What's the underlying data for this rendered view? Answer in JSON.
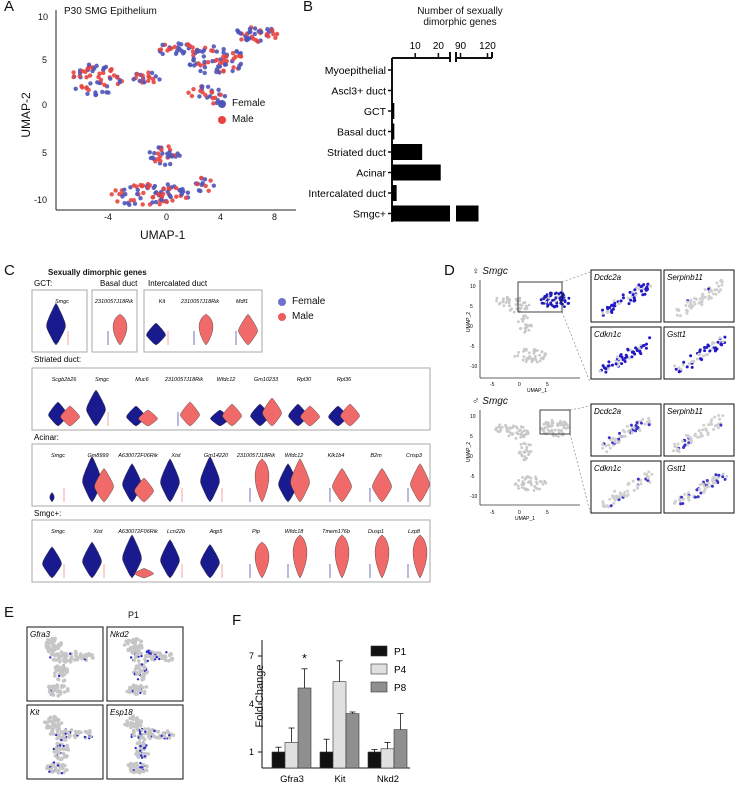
{
  "panels": {
    "A": "A",
    "B": "B",
    "C": "C",
    "D": "D",
    "E": "E",
    "F": "F"
  },
  "panelA": {
    "title": "P30 SMG Epithelium",
    "xlabel": "UMAP-1",
    "ylabel": "UMAP-2",
    "xticks": [
      "-4",
      "0",
      "4",
      "8"
    ],
    "yticks": [
      "10",
      "5",
      "0",
      "5",
      "-10"
    ],
    "legend": [
      {
        "label": "Female",
        "color": "#4f55b8"
      },
      {
        "label": "Male",
        "color": "#e8443f"
      }
    ]
  },
  "panelB": {
    "axis_title_line1": "Number of sexually",
    "axis_title_line2": "dimorphic genes",
    "ticks": [
      "10",
      "20",
      "90",
      "120"
    ],
    "categories": [
      "Myoepithelial",
      "Ascl3+ duct",
      "GCT",
      "Basal duct",
      "Striated duct",
      "Acinar",
      "Intercalated duct",
      "Smgc+"
    ]
  },
  "panelC": {
    "title": "Sexually dimorphic genes",
    "legend": [
      {
        "label": "Female",
        "color": "#6f72c8"
      },
      {
        "label": "Male",
        "color": "#ef5b5b"
      }
    ],
    "groups": [
      {
        "label": "GCT:",
        "genes": [
          "Smgc"
        ]
      },
      {
        "label": "Basal duct",
        "genes": [
          "2310057J18Rik"
        ]
      },
      {
        "label": "Intercalated duct",
        "genes": [
          "Kit",
          "2310057J18Rik",
          "Mdf1"
        ]
      },
      {
        "label": "Striated duct:",
        "genes": [
          "Scgb2b26",
          "Smgc",
          "Muc6",
          "2310057J18Rik",
          "Wfdc12",
          "Gm10233",
          "Rpl30",
          "Rpl36"
        ]
      },
      {
        "label": "Acinar:",
        "genes": [
          "Smgc",
          "Gm8999",
          "A630072F06Rik",
          "Xist",
          "Gm14220",
          "2310057J18Rik",
          "Wfdc12",
          "Klk1b4",
          "B2m",
          "Crisp3"
        ]
      },
      {
        "label": "Smgc+:",
        "genes": [
          "Smgc",
          "Xist",
          "A630072F06Rik",
          "Lcn22b",
          "Aqp5",
          "Pip",
          "Wfdc18",
          "Tmem176b",
          "Dusp1",
          "Lzp8"
        ]
      }
    ]
  },
  "panelD": {
    "female_title": "♀ Smgc",
    "male_title": "♂ Smgc",
    "xlabel": "UMAP_1",
    "ylabel": "UMAP_2",
    "xticks": [
      "-5",
      "0",
      "5"
    ],
    "yticks": [
      "10",
      "5",
      "0",
      "-5",
      "-10"
    ],
    "genes": [
      "Dcdc2a",
      "Serpinb11",
      "Cdkn1c",
      "Gstt1"
    ]
  },
  "panelE": {
    "title": "P1",
    "genes": [
      "Gfra3",
      "Nkd2",
      "Kit",
      "Esp18"
    ]
  },
  "panelF": {
    "ylabel": "Fold Change",
    "yticks": [
      "1",
      "4",
      "7"
    ],
    "star": "*"
  },
  "chart_data": [
    {
      "type": "bar",
      "orientation": "horizontal",
      "categories": [
        "Myoepithelial",
        "Ascl3+ duct",
        "GCT",
        "Basal duct",
        "Striated duct",
        "Acinar",
        "Intercalated duct",
        "Smgc+"
      ],
      "values": [
        0,
        0,
        1,
        1,
        13,
        21,
        2,
        110
      ],
      "xlabel": "Number of sexually dimorphic genes",
      "xaxis_break": [
        25,
        85
      ],
      "xticks": [
        10,
        20,
        90,
        120
      ]
    },
    {
      "type": "bar",
      "categories": [
        "Gfra3",
        "Kit",
        "Nkd2"
      ],
      "series": [
        {
          "name": "P1",
          "values": [
            1,
            1,
            1
          ],
          "errors": [
            0.3,
            0.8,
            0.15
          ],
          "color": "#111111"
        },
        {
          "name": "P4",
          "values": [
            1.6,
            5.4,
            1.2
          ],
          "errors": [
            0.9,
            1.3,
            0.4
          ],
          "color": "#e0e0e0"
        },
        {
          "name": "P8",
          "values": [
            5,
            3.4,
            2.4
          ],
          "errors": [
            1.2,
            0.1,
            1.0
          ],
          "color": "#8f8f8f"
        }
      ],
      "ylabel": "Fold Change",
      "ylim": [
        0,
        8
      ],
      "yticks": [
        1,
        4,
        7
      ],
      "annotations": [
        "*"
      ]
    }
  ]
}
